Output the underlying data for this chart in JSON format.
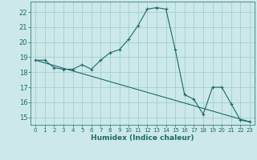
{
  "xlabel": "Humidex (Indice chaleur)",
  "bg_color": "#cce8e8",
  "grid_color": "#99cccc",
  "line_color": "#1a6b6b",
  "xlim": [
    -0.5,
    23.5
  ],
  "ylim": [
    14.5,
    22.7
  ],
  "yticks": [
    15,
    16,
    17,
    18,
    19,
    20,
    21,
    22
  ],
  "xticks": [
    0,
    1,
    2,
    3,
    4,
    5,
    6,
    7,
    8,
    9,
    10,
    11,
    12,
    13,
    14,
    15,
    16,
    17,
    18,
    19,
    20,
    21,
    22,
    23
  ],
  "line1_x": [
    0,
    1,
    2,
    3,
    4,
    5,
    6,
    7,
    8,
    9,
    10,
    11,
    12,
    13,
    14,
    15,
    16,
    17,
    18,
    19,
    20,
    21,
    22,
    23
  ],
  "line1_y": [
    18.8,
    18.8,
    18.3,
    18.2,
    18.2,
    18.5,
    18.2,
    18.8,
    19.3,
    19.5,
    20.2,
    21.1,
    22.2,
    22.3,
    22.2,
    19.5,
    16.5,
    16.2,
    15.2,
    17.0,
    17.0,
    15.9,
    14.8,
    14.7
  ],
  "line2_x": [
    0,
    23
  ],
  "line2_y": [
    18.8,
    14.7
  ]
}
